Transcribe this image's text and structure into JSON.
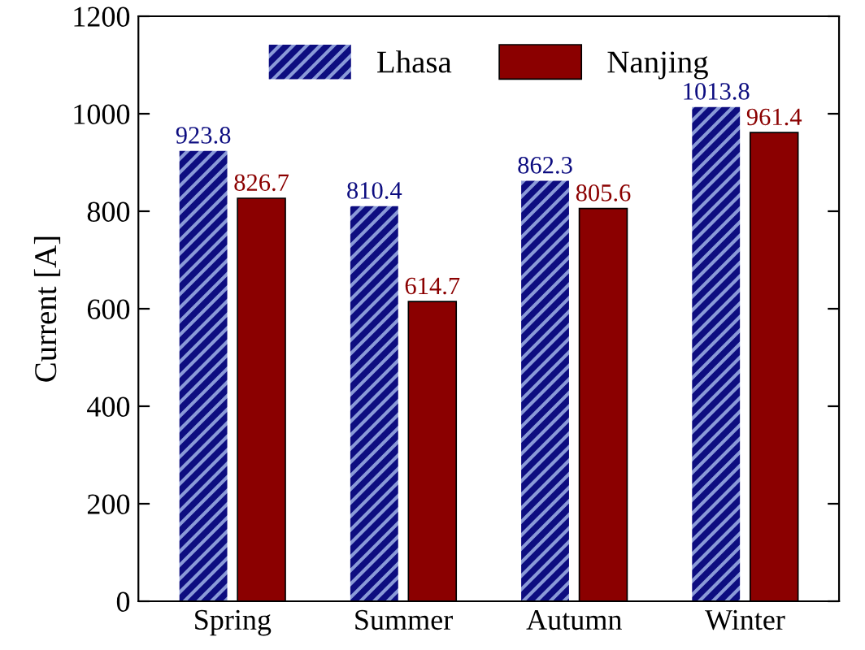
{
  "chart_data": {
    "type": "bar",
    "ylabel": "Current [A]",
    "categories": [
      "Spring",
      "Summer",
      "Autumn",
      "Winter"
    ],
    "series": [
      {
        "name": "Lhasa",
        "color": "#0d0d80",
        "values": [
          923.8,
          810.4,
          862.3,
          1013.8
        ]
      },
      {
        "name": "Nanjing",
        "color": "#8b0000",
        "values": [
          826.7,
          614.7,
          805.6,
          961.4
        ]
      }
    ],
    "ylim": [
      0,
      1200
    ],
    "yticks": [
      0,
      200,
      400,
      600,
      800,
      1000,
      1200
    ],
    "data_labels": true,
    "legend": "top",
    "grid": false
  }
}
